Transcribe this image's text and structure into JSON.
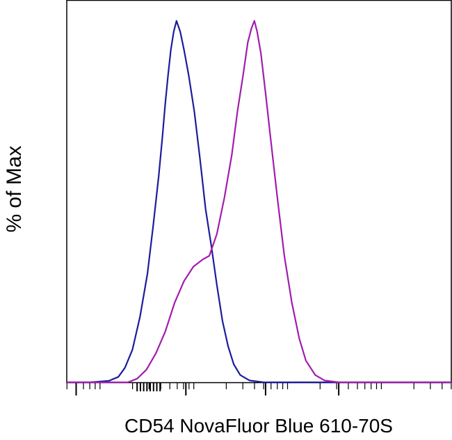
{
  "chart_data": {
    "type": "line",
    "title": "",
    "xlabel": "CD54 NovaFluor Blue 610-70S",
    "ylabel": "% of Max",
    "x_scale": "log",
    "xlim": [
      -0.4,
      3.7
    ],
    "ylim": [
      0,
      100
    ],
    "tick_labels_shown": false,
    "grid": false,
    "legend": "none",
    "series": [
      {
        "color": "#1c1c9c",
        "x": [
          -0.4,
          -0.15,
          0.05,
          0.15,
          0.22,
          0.3,
          0.38,
          0.46,
          0.52,
          0.58,
          0.62,
          0.65,
          0.68,
          0.71,
          0.74,
          0.77,
          0.81,
          0.85,
          0.9,
          0.96,
          1.02,
          1.08,
          1.14,
          1.2,
          1.26,
          1.32,
          1.38,
          1.45,
          1.55,
          1.7,
          2.0,
          3.7
        ],
        "y": [
          0,
          0,
          0.4,
          1.5,
          4,
          9,
          18,
          30,
          43,
          57,
          68,
          77,
          85,
          92,
          97,
          100,
          97,
          92,
          85,
          75,
          62,
          48,
          38,
          27,
          17,
          10,
          5,
          2,
          0.5,
          0,
          0,
          0
        ]
      },
      {
        "color": "#a21caf",
        "x": [
          -0.4,
          0.25,
          0.35,
          0.45,
          0.55,
          0.65,
          0.75,
          0.85,
          0.95,
          1.05,
          1.12,
          1.2,
          1.28,
          1.36,
          1.42,
          1.48,
          1.53,
          1.57,
          1.6,
          1.63,
          1.67,
          1.72,
          1.78,
          1.85,
          1.92,
          2.0,
          2.08,
          2.15,
          2.25,
          2.35,
          2.5,
          3.7
        ],
        "y": [
          0,
          0,
          1,
          3.5,
          8,
          14,
          22,
          28,
          32,
          34,
          35,
          41,
          51,
          63,
          75,
          85,
          94,
          98,
          100,
          97,
          91,
          80,
          66,
          50,
          35,
          22,
          12,
          6,
          2,
          0.5,
          0,
          0
        ]
      }
    ]
  }
}
